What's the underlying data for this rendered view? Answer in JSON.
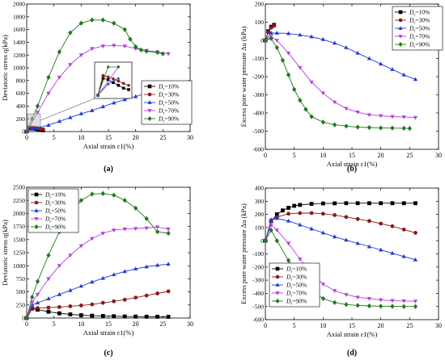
{
  "panels_letters": [
    "(a)",
    "(b)",
    "(c)",
    "(d)"
  ],
  "chart_data": [
    {
      "id": "a",
      "type": "line",
      "panel_label": "(a)",
      "xlabel": "Axial strain ε1(%)",
      "ylabel": "Deviatoric stress q(kPa)",
      "xlim": [
        0,
        30
      ],
      "ylim": [
        0,
        2000
      ],
      "xticks": [
        0,
        5,
        10,
        15,
        20,
        25,
        30
      ],
      "yticks": [
        0,
        200,
        400,
        600,
        800,
        1000,
        1200,
        1400,
        1600,
        1800,
        2000
      ],
      "legend_position": "center-right",
      "series": [
        {
          "name": "Dr=10%",
          "color": "#000000",
          "marker": "square",
          "x": [
            0,
            0.5,
            1,
            1.5,
            2,
            2.5,
            3
          ],
          "y": [
            0,
            60,
            55,
            45,
            35,
            25,
            20
          ]
        },
        {
          "name": "Dr=30%",
          "color": "#8b1a1a",
          "marker": "circle",
          "x": [
            0,
            0.5,
            1,
            1.5,
            2,
            2.5,
            3
          ],
          "y": [
            0,
            70,
            65,
            58,
            50,
            42,
            35
          ]
        },
        {
          "name": "Dr=50%",
          "color": "#1f3bd6",
          "marker": "triangle-up",
          "x": [
            0,
            1,
            2,
            4,
            6,
            8,
            10,
            12,
            14,
            16,
            18,
            20,
            22,
            24,
            26
          ],
          "y": [
            0,
            40,
            60,
            100,
            160,
            220,
            280,
            330,
            390,
            450,
            500,
            550,
            600,
            650,
            700
          ]
        },
        {
          "name": "Dr=70%",
          "color": "#b43fe0",
          "marker": "triangle-down",
          "x": [
            0,
            2,
            4,
            6,
            8,
            10,
            12,
            14,
            16,
            18,
            20,
            22,
            24,
            26
          ],
          "y": [
            0,
            300,
            600,
            850,
            1050,
            1200,
            1300,
            1340,
            1350,
            1340,
            1300,
            1270,
            1250,
            1220
          ]
        },
        {
          "name": "Dr=90%",
          "color": "#1e7a1e",
          "marker": "diamond",
          "x": [
            0,
            1,
            2,
            4,
            6,
            8,
            10,
            12,
            14,
            16,
            18,
            19,
            20,
            21,
            22,
            24,
            25
          ],
          "y": [
            0,
            200,
            400,
            850,
            1250,
            1550,
            1700,
            1750,
            1750,
            1700,
            1600,
            1450,
            1330,
            1280,
            1260,
            1240,
            1220
          ]
        }
      ]
    },
    {
      "id": "b",
      "type": "line",
      "panel_label": "(b)",
      "xlabel": "Axial strain ε1(%)",
      "ylabel": "Excess pore water pressure Δu (kPa)",
      "xlim": [
        0,
        30
      ],
      "ylim": [
        -600,
        200
      ],
      "xticks": [
        0,
        5,
        10,
        15,
        20,
        25,
        30
      ],
      "yticks": [
        200,
        100,
        0,
        -100,
        -200,
        -300,
        -400,
        -500,
        -600
      ],
      "legend_position": "top-right",
      "series": [
        {
          "name": "Dr=10%",
          "color": "#000000",
          "marker": "square",
          "x": [
            0,
            0.5,
            1,
            1.5
          ],
          "y": [
            0,
            50,
            75,
            85
          ]
        },
        {
          "name": "Dr=30%",
          "color": "#8b1a1a",
          "marker": "circle",
          "x": [
            0,
            0.5,
            1,
            1.5
          ],
          "y": [
            0,
            45,
            70,
            80
          ]
        },
        {
          "name": "Dr=50%",
          "color": "#1f3bd6",
          "marker": "triangle-up",
          "x": [
            0,
            1,
            2,
            4,
            6,
            8,
            10,
            12,
            14,
            16,
            18,
            20,
            22,
            24,
            26
          ],
          "y": [
            0,
            40,
            40,
            38,
            30,
            20,
            5,
            -15,
            -40,
            -70,
            -100,
            -130,
            -160,
            -190,
            -215
          ]
        },
        {
          "name": "Dr=70%",
          "color": "#b43fe0",
          "marker": "triangle-down",
          "x": [
            0,
            1,
            2,
            4,
            6,
            8,
            10,
            12,
            14,
            16,
            18,
            20,
            22,
            24,
            26
          ],
          "y": [
            0,
            20,
            0,
            -70,
            -150,
            -230,
            -290,
            -340,
            -375,
            -395,
            -410,
            -415,
            -420,
            -422,
            -425
          ]
        },
        {
          "name": "Dr=90%",
          "color": "#1e7a1e",
          "marker": "diamond",
          "x": [
            0,
            1,
            2,
            3,
            4,
            5,
            6,
            7,
            8,
            10,
            12,
            14,
            16,
            18,
            20,
            22,
            24,
            25
          ],
          "y": [
            0,
            10,
            -40,
            -110,
            -190,
            -270,
            -330,
            -380,
            -420,
            -450,
            -465,
            -472,
            -478,
            -480,
            -482,
            -483,
            -484,
            -485
          ]
        }
      ]
    },
    {
      "id": "c",
      "type": "line",
      "panel_label": "(c)",
      "xlabel": "Axial strain ε1(%)",
      "ylabel": "Deviatoric stress q(kPa)",
      "xlim": [
        0,
        30
      ],
      "ylim": [
        0,
        2500
      ],
      "xticks": [
        0,
        5,
        10,
        15,
        20,
        25,
        30
      ],
      "yticks": [
        0,
        250,
        500,
        750,
        1000,
        1250,
        1500,
        1750,
        2000,
        2250,
        2500
      ],
      "legend_position": "top-left",
      "series": [
        {
          "name": "Dr=10%",
          "color": "#000000",
          "marker": "square",
          "x": [
            0,
            1,
            2,
            4,
            6,
            8,
            10,
            12,
            14,
            16,
            18,
            20,
            22,
            24,
            26
          ],
          "y": [
            0,
            180,
            160,
            120,
            90,
            70,
            55,
            45,
            40,
            35,
            30,
            28,
            26,
            25,
            24
          ]
        },
        {
          "name": "Dr=30%",
          "color": "#8b1a1a",
          "marker": "circle",
          "x": [
            0,
            1,
            2,
            4,
            6,
            8,
            10,
            12,
            14,
            16,
            18,
            20,
            22,
            24,
            26
          ],
          "y": [
            0,
            180,
            190,
            200,
            210,
            225,
            240,
            260,
            290,
            320,
            350,
            390,
            430,
            470,
            510
          ]
        },
        {
          "name": "Dr=50%",
          "color": "#1f3bd6",
          "marker": "triangle-up",
          "x": [
            0,
            1,
            2,
            4,
            6,
            8,
            10,
            12,
            14,
            16,
            18,
            20,
            22,
            24,
            26
          ],
          "y": [
            0,
            250,
            290,
            370,
            450,
            530,
            610,
            690,
            760,
            830,
            890,
            940,
            980,
            1010,
            1030
          ]
        },
        {
          "name": "Dr=70%",
          "color": "#b43fe0",
          "marker": "triangle-down",
          "x": [
            0,
            1,
            2,
            4,
            6,
            8,
            10,
            12,
            14,
            16,
            18,
            20,
            22,
            24,
            26
          ],
          "y": [
            0,
            300,
            450,
            750,
            1000,
            1200,
            1380,
            1520,
            1620,
            1680,
            1700,
            1710,
            1720,
            1740,
            1700
          ]
        },
        {
          "name": "Dr=90%",
          "color": "#1e7a1e",
          "marker": "diamond",
          "x": [
            0,
            1,
            2,
            4,
            6,
            8,
            10,
            12,
            14,
            16,
            18,
            20,
            22,
            24,
            26
          ],
          "y": [
            0,
            400,
            700,
            1200,
            1650,
            2000,
            2250,
            2370,
            2380,
            2350,
            2250,
            2100,
            1900,
            1650,
            1620
          ]
        }
      ]
    },
    {
      "id": "d",
      "type": "line",
      "panel_label": "(d)",
      "xlabel": "Axial strain ε1(%)",
      "ylabel": "Excess pore water pressure Δu (kPa)",
      "xlim": [
        0,
        30
      ],
      "ylim": [
        -600,
        400
      ],
      "xticks": [
        0,
        5,
        10,
        15,
        20,
        25,
        30
      ],
      "yticks": [
        400,
        300,
        200,
        100,
        0,
        -100,
        -200,
        -300,
        -400,
        -500,
        -600
      ],
      "legend_position": "bottom-left",
      "series": [
        {
          "name": "Dr=10%",
          "color": "#000000",
          "marker": "square",
          "x": [
            0,
            1,
            2,
            3,
            4,
            5,
            6,
            8,
            10,
            12,
            14,
            16,
            18,
            20,
            22,
            24,
            26
          ],
          "y": [
            0,
            150,
            200,
            230,
            250,
            265,
            272,
            280,
            283,
            284,
            285,
            285,
            285,
            285,
            285,
            285,
            285
          ]
        },
        {
          "name": "Dr=30%",
          "color": "#8b1a1a",
          "marker": "circle",
          "x": [
            0,
            1,
            2,
            4,
            6,
            8,
            10,
            12,
            14,
            16,
            18,
            20,
            22,
            24,
            26
          ],
          "y": [
            0,
            150,
            180,
            205,
            210,
            210,
            205,
            195,
            180,
            165,
            150,
            130,
            110,
            85,
            60
          ]
        },
        {
          "name": "Dr=50%",
          "color": "#1f3bd6",
          "marker": "triangle-up",
          "x": [
            0,
            1,
            2,
            4,
            6,
            8,
            10,
            12,
            14,
            16,
            18,
            20,
            22,
            24,
            26
          ],
          "y": [
            0,
            160,
            170,
            150,
            120,
            90,
            60,
            30,
            5,
            -20,
            -45,
            -70,
            -95,
            -120,
            -145
          ]
        },
        {
          "name": "Dr=70%",
          "color": "#b43fe0",
          "marker": "triangle-down",
          "x": [
            0,
            1,
            2,
            4,
            6,
            8,
            10,
            12,
            14,
            16,
            18,
            20,
            22,
            24,
            26
          ],
          "y": [
            0,
            120,
            80,
            -20,
            -140,
            -250,
            -330,
            -380,
            -410,
            -430,
            -440,
            -450,
            -455,
            -458,
            -460
          ]
        },
        {
          "name": "Dr=90%",
          "color": "#1e7a1e",
          "marker": "diamond",
          "x": [
            0,
            1,
            2,
            4,
            6,
            8,
            10,
            12,
            14,
            16,
            18,
            20,
            22,
            24,
            26
          ],
          "y": [
            0,
            80,
            0,
            -150,
            -280,
            -380,
            -440,
            -470,
            -485,
            -492,
            -496,
            -498,
            -499,
            -500,
            -500
          ]
        }
      ]
    }
  ]
}
